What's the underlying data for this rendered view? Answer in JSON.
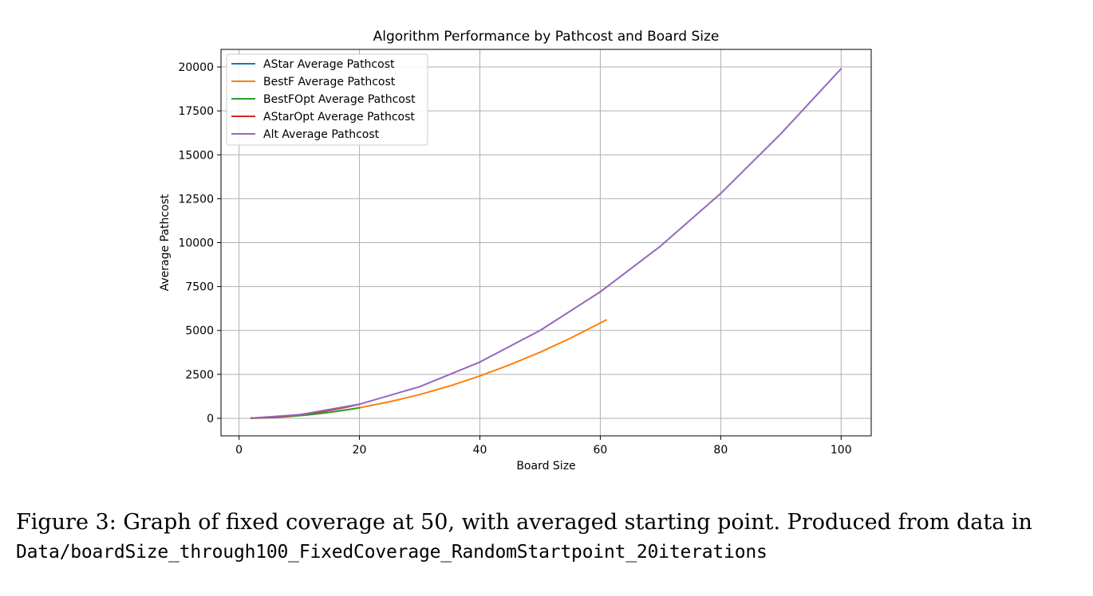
{
  "chart_data": {
    "type": "line",
    "title": "Algorithm Performance by Pathcost and Board Size",
    "xlabel": "Board Size",
    "ylabel": "Average Pathcost",
    "xlim": [
      -3,
      105
    ],
    "ylim": [
      -1000,
      21000
    ],
    "xticks": [
      0,
      20,
      40,
      60,
      80,
      100
    ],
    "yticks": [
      0,
      2500,
      5000,
      7500,
      10000,
      12500,
      15000,
      17500,
      20000
    ],
    "grid": true,
    "legend_position": "upper left",
    "series": [
      {
        "name": "AStar Average Pathcost",
        "color": "#1f77b4",
        "x": [
          2,
          4,
          6,
          8,
          10,
          12,
          14,
          16,
          18,
          20
        ],
        "y": [
          8,
          32,
          72,
          128,
          200,
          288,
          392,
          512,
          648,
          800
        ]
      },
      {
        "name": "BestF Average Pathcost",
        "color": "#ff7f0e",
        "x": [
          2,
          5,
          10,
          15,
          20,
          25,
          30,
          35,
          40,
          45,
          50,
          55,
          61
        ],
        "y": [
          6,
          38,
          150,
          340,
          600,
          940,
          1350,
          1840,
          2410,
          3050,
          3760,
          4550,
          5600
        ]
      },
      {
        "name": "BestFOpt Average Pathcost",
        "color": "#2ca02c",
        "x": [
          2,
          4,
          6,
          8,
          10,
          12,
          14,
          16,
          18,
          20
        ],
        "y": [
          6,
          25,
          54,
          96,
          150,
          216,
          294,
          384,
          486,
          600
        ]
      },
      {
        "name": "AStarOpt Average Pathcost",
        "color": "#d62728",
        "x": [
          2,
          4,
          6,
          8,
          10,
          12,
          14,
          16,
          18,
          20
        ],
        "y": [
          8,
          32,
          72,
          128,
          200,
          288,
          392,
          512,
          648,
          800
        ]
      },
      {
        "name": "Alt Average Pathcost",
        "color": "#9467bd",
        "x": [
          2,
          10,
          20,
          30,
          40,
          50,
          60,
          70,
          80,
          90,
          100
        ],
        "y": [
          8,
          200,
          800,
          1800,
          3200,
          5000,
          7200,
          9800,
          12800,
          16200,
          19900
        ]
      }
    ]
  },
  "caption": {
    "line1": "Figure 3:  Graph of fixed coverage at 50, with averaged starting point.  Produced from data in",
    "line2": "Data/boardSize_through100_FixedCoverage_RandomStartpoint_20iterations"
  }
}
